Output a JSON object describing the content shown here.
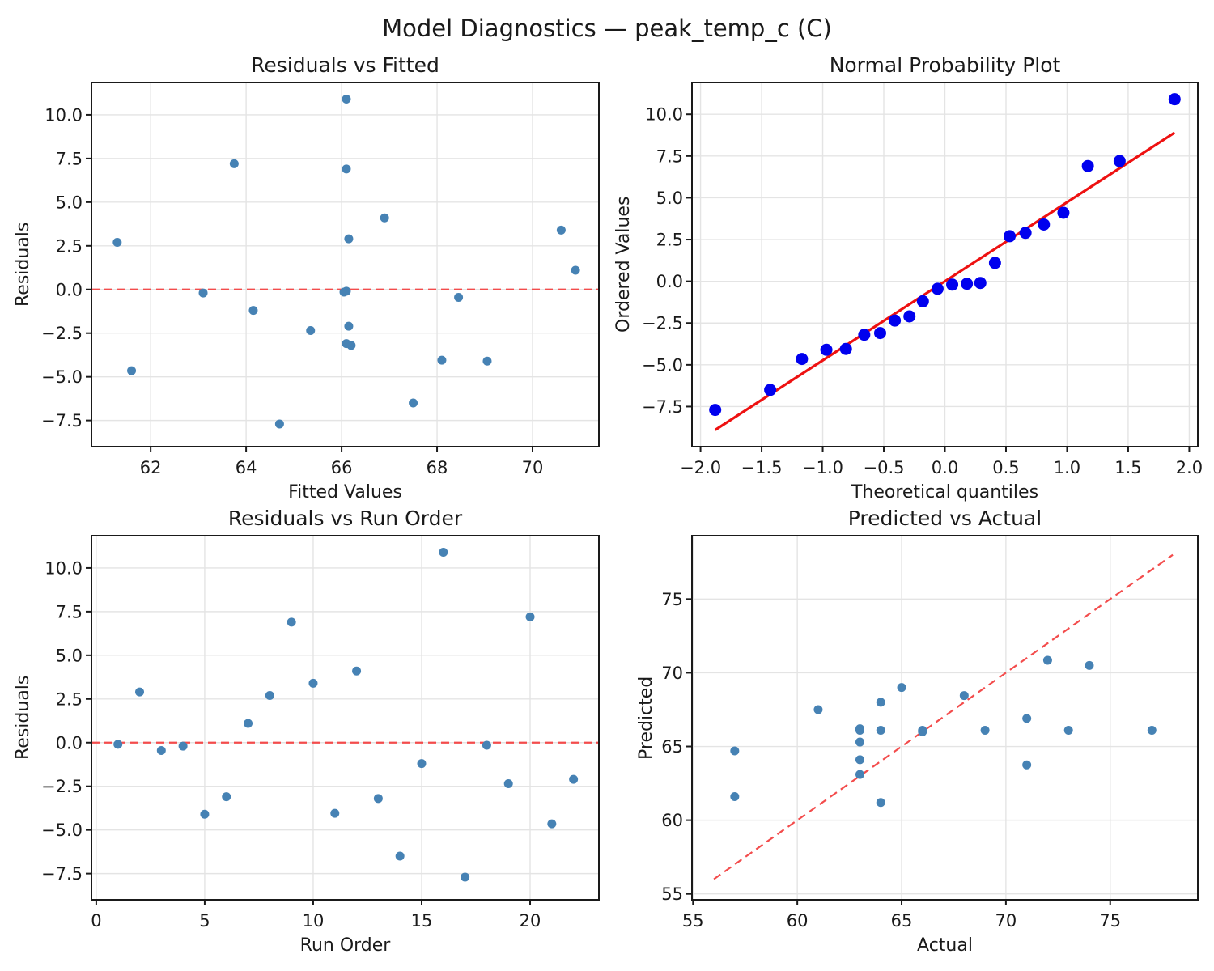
{
  "figure": {
    "title": "Model Diagnostics — peak_temp_c (C)",
    "background_color": "#ffffff",
    "grid_color": "#e4e4e4",
    "spine_color": "#1a1a1a",
    "text_color": "#1a1a1a"
  },
  "chart_data": [
    {
      "type": "scatter",
      "name": "residuals_vs_fitted",
      "title": "Residuals vs Fitted",
      "xlabel": "Fitted Values",
      "ylabel": "Residuals",
      "xlim": [
        60.76,
        71.39
      ],
      "ylim": [
        -9.0,
        11.85
      ],
      "xticks": [
        62,
        64,
        66,
        68,
        70
      ],
      "xtick_labels": [
        "62",
        "64",
        "66",
        "68",
        "70"
      ],
      "yticks": [
        -7.5,
        -5.0,
        -2.5,
        0.0,
        2.5,
        5.0,
        7.5,
        10.0
      ],
      "ytick_labels": [
        "−7.5",
        "−5.0",
        "−2.5",
        "0.0",
        "2.5",
        "5.0",
        "7.5",
        "10.0"
      ],
      "grid": true,
      "legend": "none",
      "marker": {
        "color": "#4682B4",
        "radius": 5.5
      },
      "points": [
        [
          61.3,
          2.7
        ],
        [
          61.6,
          -4.65
        ],
        [
          63.1,
          -0.2
        ],
        [
          63.75,
          7.2
        ],
        [
          64.15,
          -1.2
        ],
        [
          64.7,
          -7.7
        ],
        [
          65.35,
          -2.35
        ],
        [
          66.1,
          10.9
        ],
        [
          66.1,
          6.9
        ],
        [
          66.15,
          2.9
        ],
        [
          66.1,
          -0.1
        ],
        [
          66.05,
          -0.15
        ],
        [
          66.15,
          -2.1
        ],
        [
          66.1,
          -3.1
        ],
        [
          66.2,
          -3.2
        ],
        [
          66.9,
          4.1
        ],
        [
          67.5,
          -6.5
        ],
        [
          68.1,
          -4.05
        ],
        [
          68.45,
          -0.45
        ],
        [
          69.05,
          -4.1
        ],
        [
          70.6,
          3.4
        ],
        [
          70.9,
          1.1
        ]
      ],
      "lines": [
        {
          "name": "zero-residual-line",
          "x": [
            60.76,
            71.39
          ],
          "y": [
            0,
            0
          ],
          "color": "#f34c4c",
          "width": 2.2,
          "dash": "10 6"
        }
      ]
    },
    {
      "type": "scatter",
      "name": "normal_probability_plot",
      "title": "Normal Probability Plot",
      "xlabel": "Theoretical quantiles",
      "ylabel": "Ordered Values",
      "xlim": [
        -2.07,
        2.07
      ],
      "ylim": [
        -9.9,
        11.9
      ],
      "xticks": [
        -2.0,
        -1.5,
        -1.0,
        -0.5,
        0.0,
        0.5,
        1.0,
        1.5,
        2.0
      ],
      "xtick_labels": [
        "−2.0",
        "−1.5",
        "−1.0",
        "−0.5",
        "0.0",
        "0.5",
        "1.0",
        "1.5",
        "2.0"
      ],
      "yticks": [
        -7.5,
        -5.0,
        -2.5,
        0.0,
        2.5,
        5.0,
        7.5,
        10.0
      ],
      "ytick_labels": [
        "−7.5",
        "−5.0",
        "−2.5",
        "0.0",
        "2.5",
        "5.0",
        "7.5",
        "10.0"
      ],
      "grid": true,
      "legend": "none",
      "marker": {
        "color": "#0000ee",
        "radius": 7.5
      },
      "points": [
        [
          -1.88,
          -7.7
        ],
        [
          -1.43,
          -6.5
        ],
        [
          -1.17,
          -4.65
        ],
        [
          -0.97,
          -4.1
        ],
        [
          -0.81,
          -4.05
        ],
        [
          -0.66,
          -3.2
        ],
        [
          -0.53,
          -3.1
        ],
        [
          -0.41,
          -2.35
        ],
        [
          -0.29,
          -2.1
        ],
        [
          -0.18,
          -1.2
        ],
        [
          -0.06,
          -0.45
        ],
        [
          0.06,
          -0.2
        ],
        [
          0.18,
          -0.15
        ],
        [
          0.29,
          -0.1
        ],
        [
          0.41,
          1.1
        ],
        [
          0.53,
          2.7
        ],
        [
          0.66,
          2.9
        ],
        [
          0.81,
          3.4
        ],
        [
          0.97,
          4.1
        ],
        [
          1.17,
          6.9
        ],
        [
          1.43,
          7.2
        ],
        [
          1.88,
          10.9
        ]
      ],
      "lines": [
        {
          "name": "normal-fit-line",
          "x": [
            -1.88,
            1.88
          ],
          "y": [
            -8.9,
            8.9
          ],
          "color": "#ee1111",
          "width": 3.2,
          "dash": ""
        }
      ]
    },
    {
      "type": "scatter",
      "name": "residuals_vs_run_order",
      "title": "Residuals vs Run Order",
      "xlabel": "Run Order",
      "ylabel": "Residuals",
      "xlim": [
        -0.22,
        23.17
      ],
      "ylim": [
        -9.0,
        11.85
      ],
      "xticks": [
        0,
        5,
        10,
        15,
        20
      ],
      "xtick_labels": [
        "0",
        "5",
        "10",
        "15",
        "20"
      ],
      "yticks": [
        -7.5,
        -5.0,
        -2.5,
        0.0,
        2.5,
        5.0,
        7.5,
        10.0
      ],
      "ytick_labels": [
        "−7.5",
        "−5.0",
        "−2.5",
        "0.0",
        "2.5",
        "5.0",
        "7.5",
        "10.0"
      ],
      "grid": true,
      "legend": "none",
      "marker": {
        "color": "#4682B4",
        "radius": 5.5
      },
      "points": [
        [
          1,
          -0.1
        ],
        [
          2,
          2.9
        ],
        [
          3,
          -0.45
        ],
        [
          4,
          -0.2
        ],
        [
          5,
          -4.1
        ],
        [
          6,
          -3.1
        ],
        [
          7,
          1.1
        ],
        [
          8,
          2.7
        ],
        [
          9,
          6.9
        ],
        [
          10,
          3.4
        ],
        [
          11,
          -4.05
        ],
        [
          12,
          4.1
        ],
        [
          13,
          -3.2
        ],
        [
          14,
          -6.5
        ],
        [
          15,
          -1.2
        ],
        [
          16,
          10.9
        ],
        [
          17,
          -7.7
        ],
        [
          18,
          -0.15
        ],
        [
          19,
          -2.35
        ],
        [
          20,
          7.2
        ],
        [
          21,
          -4.65
        ],
        [
          22,
          -2.1
        ]
      ],
      "lines": [
        {
          "name": "zero-residual-line",
          "x": [
            -0.22,
            23.17
          ],
          "y": [
            0,
            0
          ],
          "color": "#f34c4c",
          "width": 2.2,
          "dash": "10 6"
        }
      ]
    },
    {
      "type": "scatter",
      "name": "predicted_vs_actual",
      "title": "Predicted vs Actual",
      "xlabel": "Actual",
      "ylabel": "Predicted",
      "xlim": [
        54.95,
        79.2
      ],
      "ylim": [
        54.6,
        79.3
      ],
      "xticks": [
        55,
        60,
        65,
        70,
        75
      ],
      "xtick_labels": [
        "55",
        "60",
        "65",
        "70",
        "75"
      ],
      "yticks": [
        55,
        60,
        65,
        70,
        75
      ],
      "ytick_labels": [
        "55",
        "60",
        "65",
        "70",
        "75"
      ],
      "grid": true,
      "legend": "none",
      "marker": {
        "color": "#4682B4",
        "radius": 5.5
      },
      "points": [
        [
          57,
          64.7
        ],
        [
          57,
          61.6
        ],
        [
          61,
          67.5
        ],
        [
          63,
          66.1
        ],
        [
          63,
          66.2
        ],
        [
          63,
          65.3
        ],
        [
          63,
          64.1
        ],
        [
          63,
          63.1
        ],
        [
          64,
          68.0
        ],
        [
          64,
          66.1
        ],
        [
          64,
          61.2
        ],
        [
          65,
          69.0
        ],
        [
          66,
          66.1
        ],
        [
          66,
          66.0
        ],
        [
          68,
          68.45
        ],
        [
          69,
          66.1
        ],
        [
          71,
          66.9
        ],
        [
          71,
          63.75
        ],
        [
          72,
          70.85
        ],
        [
          73,
          66.1
        ],
        [
          74,
          70.5
        ],
        [
          77,
          66.1
        ]
      ],
      "lines": [
        {
          "name": "identity-line",
          "x": [
            56,
            78
          ],
          "y": [
            56,
            78
          ],
          "color": "#f34c4c",
          "width": 2.2,
          "dash": "10 6"
        }
      ]
    }
  ]
}
